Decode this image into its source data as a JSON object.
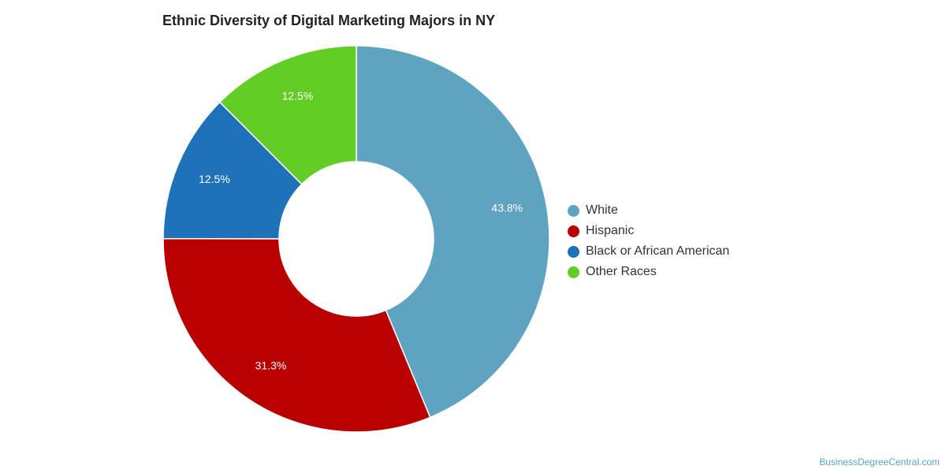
{
  "chart_data": {
    "type": "pie",
    "title": "Ethnic Diversity of Digital Marketing Majors in NY",
    "categories": [
      "White",
      "Hispanic",
      "Black or African American",
      "Other Races"
    ],
    "values": [
      43.8,
      31.3,
      12.5,
      12.5
    ],
    "labels": [
      "43.8%",
      "31.3%",
      "12.5%",
      "12.5%"
    ],
    "colors": [
      "#5ea3c0",
      "#b80000",
      "#1f72ba",
      "#62cd25"
    ],
    "donut": true,
    "legend_position": "right"
  },
  "footer": {
    "credit": "BusinessDegreeCentral.com"
  }
}
